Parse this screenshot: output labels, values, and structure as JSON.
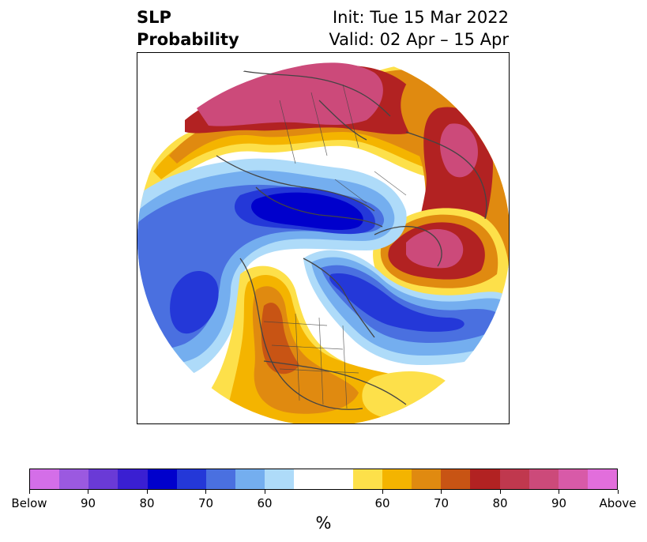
{
  "header": {
    "title_line1": "SLP",
    "title_line2": "Probability",
    "init": "Init: Tue 15 Mar 2022",
    "valid": "Valid: 02 Apr – 15 Apr"
  },
  "colorbar": {
    "colors": [
      "#d46ee8",
      "#9b59e0",
      "#6a3ad6",
      "#3a1fd2",
      "#0000cc",
      "#2438d8",
      "#4a70e0",
      "#74aeef",
      "#aedbf9",
      "#ffffff",
      "#ffffff",
      "#fde04a",
      "#f4b400",
      "#e08a10",
      "#c85414",
      "#b22222",
      "#c0384e",
      "#cc4a7a",
      "#d85aa8",
      "#e26edc"
    ],
    "tick_labels": [
      "Below",
      "90",
      "80",
      "70",
      "60",
      "60",
      "70",
      "80",
      "90",
      "Above"
    ],
    "units": "%"
  },
  "map": {
    "colors": {
      "above_low": "#fde04a",
      "above_60": "#f4b400",
      "above_70": "#e08a10",
      "above_75": "#c85414",
      "above_80": "#b22222",
      "above_85": "#c0384e",
      "above_90": "#cc4a7a",
      "below_low": "#aedbf9",
      "below_60": "#74aeef",
      "below_70": "#4a70e0",
      "below_75": "#2438d8",
      "below_80": "#0000cc",
      "coast": "#444444"
    }
  }
}
